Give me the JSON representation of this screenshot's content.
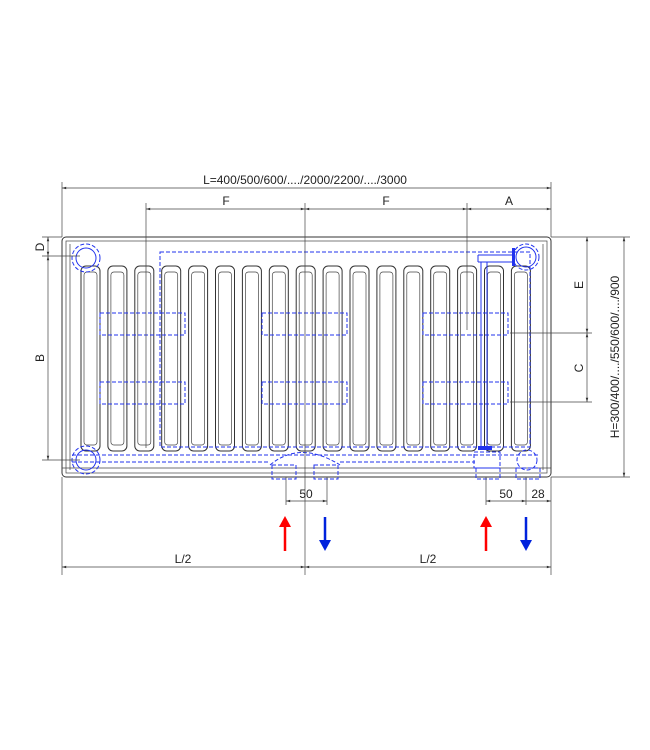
{
  "dimensions": {
    "length": "L=400/500/600/..../2000/2200/..../3000",
    "f_left": "F",
    "f_right": "F",
    "a": "A",
    "d": "D",
    "b": "B",
    "e": "E",
    "c": "C",
    "height": "H=300/400/..../550/600/..../900",
    "bottom_center_spacing": "50",
    "bottom_right_spacing": "50",
    "bottom_right_offset": "28",
    "half_left": "L/2",
    "half_right": "L/2"
  },
  "colors": {
    "supply": "#ff0000",
    "return": "#0022dd",
    "hidden_lines": "#2233ee",
    "outline": "#333333"
  },
  "icons": {
    "supply_arrow": "arrow-up",
    "return_arrow": "arrow-down"
  }
}
